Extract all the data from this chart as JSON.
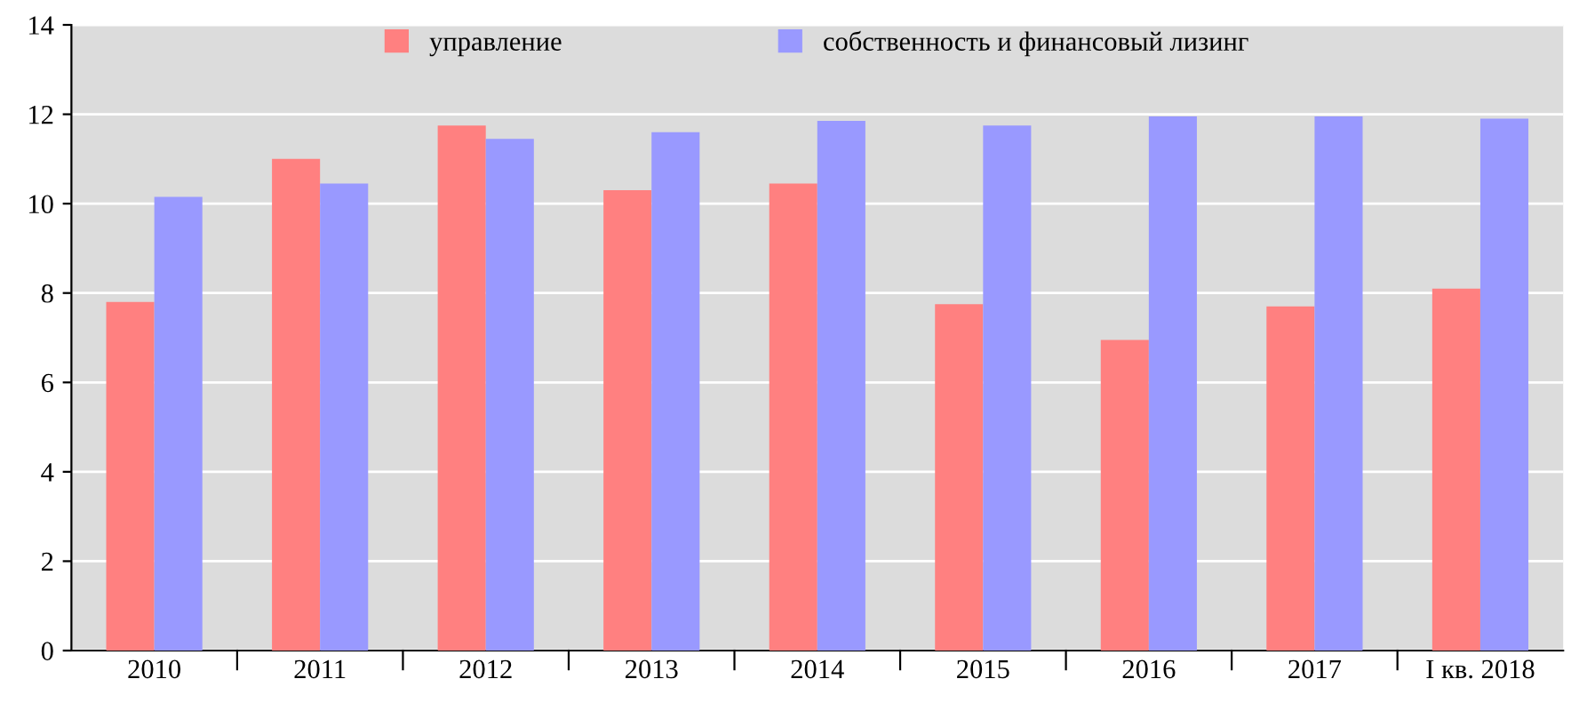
{
  "chart_data": {
    "type": "bar",
    "categories": [
      "2010",
      "2011",
      "2012",
      "2013",
      "2014",
      "2015",
      "2016",
      "2017",
      "I кв. 2018"
    ],
    "series": [
      {
        "name": "управление",
        "color": "#ff8080",
        "values": [
          7.8,
          11.0,
          11.75,
          10.3,
          10.45,
          7.75,
          6.95,
          7.7,
          8.1
        ]
      },
      {
        "name": "собственность и финансовый лизинг",
        "color": "#9999ff",
        "values": [
          10.15,
          10.45,
          11.45,
          11.6,
          11.85,
          11.75,
          11.95,
          11.95,
          11.9
        ]
      }
    ],
    "ylim": [
      0,
      14
    ],
    "yticks": [
      0,
      2,
      4,
      6,
      8,
      10,
      12,
      14
    ],
    "grid": "y",
    "legend": "top"
  }
}
